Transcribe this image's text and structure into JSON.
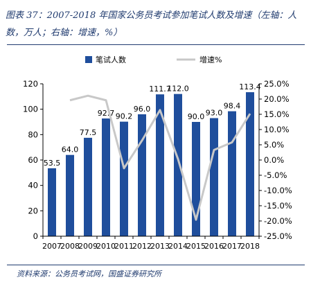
{
  "title": "图表 37：2007-2018 年国家公务员考试参加笔试人数及增速（左轴：人数，万人；右轴：增速，%）",
  "source": "资料来源：公务员考试网，国盛证券研究所",
  "colors": {
    "bar": "#1f4e9c",
    "line": "#c8c8c8",
    "text": "#1f3a6e"
  },
  "chart_data": {
    "type": "bar",
    "categories": [
      "2007",
      "2008",
      "2009",
      "2010",
      "2011",
      "2012",
      "2013",
      "2014",
      "2015",
      "2016",
      "2017",
      "2018"
    ],
    "series": [
      {
        "name": "笔试人数",
        "type": "bar",
        "axis": "left",
        "values": [
          53.5,
          64.0,
          77.5,
          92.7,
          90.2,
          96.0,
          111.7,
          112.0,
          90.0,
          93.0,
          98.4,
          113.4
        ],
        "labels": [
          "53.5",
          "64.0",
          "77.5",
          "92.7",
          "90.2",
          "96.0",
          "111.7",
          "112.0",
          "90.0",
          "93.0",
          "98.4",
          "113.4"
        ]
      },
      {
        "name": "增速%",
        "type": "line",
        "axis": "right",
        "values": [
          null,
          19.6,
          21.1,
          19.6,
          -2.7,
          6.4,
          16.4,
          0.3,
          -19.6,
          3.3,
          5.8,
          15.2
        ]
      }
    ],
    "y_left": {
      "min": 0,
      "max": 120,
      "ticks": [
        "0",
        "20",
        "40",
        "60",
        "80",
        "100",
        "120"
      ]
    },
    "y_right": {
      "min": -25,
      "max": 25,
      "ticks": [
        "-25.0%",
        "-20.0%",
        "-15.0%",
        "-10.0%",
        "-5.0%",
        "0.0%",
        "5.0%",
        "10.0%",
        "15.0%",
        "20.0%",
        "25.0%"
      ]
    },
    "legend": {
      "position": "top"
    },
    "grid": false
  }
}
